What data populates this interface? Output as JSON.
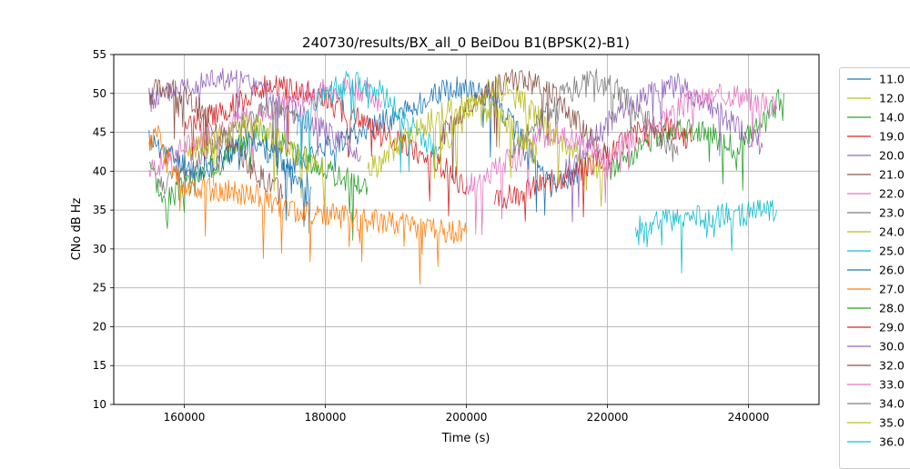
{
  "chart_data": {
    "type": "line",
    "title": "240730/results/BX_all_0 BeiDou B1(BPSK(2)-B1)",
    "xlabel": "Time (s)",
    "ylabel": "CNo dB Hz",
    "xlim": [
      150000,
      250000
    ],
    "ylim": [
      10,
      55
    ],
    "xticks": [
      160000,
      180000,
      200000,
      220000,
      240000
    ],
    "xtick_labels": [
      "160000",
      "180000",
      "200000",
      "220000",
      "240000"
    ],
    "yticks": [
      10,
      15,
      20,
      25,
      30,
      35,
      40,
      45,
      50,
      55
    ],
    "ytick_labels": [
      "10",
      "15",
      "20",
      "25",
      "30",
      "35",
      "40",
      "45",
      "50",
      "55"
    ],
    "grid": true,
    "legend_position": "outside-right",
    "series": [
      {
        "name": "11.0",
        "color": "#1f77b4",
        "x": [
          174000,
          182000,
          190000,
          196000,
          200000,
          204000,
          208000,
          212000,
          216000
        ],
        "y": [
          40,
          44,
          47,
          50,
          51,
          49,
          44,
          38,
          40
        ]
      },
      {
        "name": "12.0",
        "color": "#bcbd22",
        "x": [
          196000,
          200000,
          204000,
          208000,
          212000,
          216000,
          220000
        ],
        "y": [
          42,
          48,
          51,
          49,
          45,
          42,
          39
        ]
      },
      {
        "name": "14.0",
        "color": "#2ca02c",
        "x": [
          155000,
          157000,
          160000,
          163000,
          166000,
          170000,
          175000,
          180000,
          186000
        ],
        "y": [
          42,
          36,
          38,
          40,
          42,
          45,
          43,
          40,
          38
        ]
      },
      {
        "name": "19.0",
        "color": "#d62728",
        "x": [
          160000,
          166000,
          172000,
          178000,
          184000,
          190000,
          196000,
          200000
        ],
        "y": [
          46,
          48,
          51,
          50,
          47,
          44,
          41,
          38
        ]
      },
      {
        "name": "20.0",
        "color": "#9467bd",
        "x": [
          155000,
          160000,
          165000,
          170000,
          175000,
          180000,
          185000
        ],
        "y": [
          49,
          51,
          52,
          51,
          48,
          45,
          42
        ]
      },
      {
        "name": "21.0",
        "color": "#8c564b",
        "x": [
          155000,
          158000,
          162000,
          166000,
          170000,
          174000
        ],
        "y": [
          50,
          51,
          48,
          44,
          40,
          37
        ]
      },
      {
        "name": "22.0",
        "color": "#e377c2",
        "x": [
          155000,
          160000,
          166000,
          172000,
          178000,
          184000,
          188000
        ],
        "y": [
          40,
          43,
          46,
          48,
          50,
          51,
          49
        ]
      },
      {
        "name": "23.0",
        "color": "#7f7f7f",
        "x": [
          156000,
          160000,
          164000,
          168000,
          172000,
          176000
        ],
        "y": [
          38,
          40,
          43,
          46,
          48,
          47
        ]
      },
      {
        "name": "24.0",
        "color": "#bcbd22",
        "x": [
          160000,
          164000,
          168000,
          172000,
          176000,
          180000
        ],
        "y": [
          42,
          44,
          46,
          45,
          42,
          40
        ]
      },
      {
        "name": "25.0",
        "color": "#17becf",
        "x": [
          176000,
          180000,
          184000,
          188000,
          192000,
          196000
        ],
        "y": [
          46,
          50,
          52,
          50,
          46,
          42
        ]
      },
      {
        "name": "26.0",
        "color": "#1f77b4",
        "x": [
          155000,
          158000,
          162000,
          166000,
          170000,
          174000,
          178000
        ],
        "y": [
          44,
          42,
          40,
          42,
          44,
          41,
          38
        ]
      },
      {
        "name": "27.0",
        "color": "#ff7f0e",
        "x": [
          155000,
          156000,
          158000,
          160000,
          170000,
          175000,
          200000
        ],
        "y": [
          43,
          45,
          41,
          38,
          37,
          35,
          32
        ]
      },
      {
        "name": "28.0",
        "color": "#2ca02c",
        "x": [
          220000,
          226000,
          230000,
          234000,
          238000,
          242000,
          245000
        ],
        "y": [
          40,
          44,
          46,
          45,
          43,
          46,
          50
        ]
      },
      {
        "name": "29.0",
        "color": "#d62728",
        "x": [
          204000,
          210000,
          216000,
          220000,
          224000,
          228000,
          232000
        ],
        "y": [
          36,
          38,
          40,
          42,
          45,
          46,
          44
        ]
      },
      {
        "name": "30.0",
        "color": "#9467bd",
        "x": [
          214000,
          218000,
          222000,
          226000,
          230000,
          234000,
          238000,
          242000
        ],
        "y": [
          40,
          44,
          48,
          50,
          51,
          49,
          46,
          43
        ]
      },
      {
        "name": "32.0",
        "color": "#8c564b",
        "x": [
          196000,
          200000,
          204000,
          208000,
          212000,
          216000,
          220000
        ],
        "y": [
          44,
          48,
          51,
          52,
          50,
          46,
          42
        ]
      },
      {
        "name": "33.0",
        "color": "#e377c2",
        "x": [
          200000,
          204000,
          208000,
          212000,
          216000,
          220000,
          226000,
          232000,
          238000,
          244000
        ],
        "y": [
          38,
          40,
          43,
          45,
          44,
          42,
          46,
          49,
          50,
          48
        ]
      },
      {
        "name": "34.0",
        "color": "#7f7f7f",
        "x": [
          206000,
          210000,
          214000,
          218000,
          222000,
          226000,
          230000
        ],
        "y": [
          42,
          46,
          50,
          52,
          50,
          46,
          42
        ]
      },
      {
        "name": "35.0",
        "color": "#bcbd22",
        "x": [
          186000,
          190000,
          194000,
          198000,
          202000,
          206000,
          210000
        ],
        "y": [
          40,
          43,
          46,
          48,
          49,
          46,
          42
        ]
      },
      {
        "name": "36.0",
        "color": "#17becf",
        "x": [
          224000,
          228000,
          232000,
          236000,
          240000,
          244000
        ],
        "y": [
          33,
          33.5,
          34,
          34.3,
          34.6,
          35
        ]
      }
    ]
  }
}
